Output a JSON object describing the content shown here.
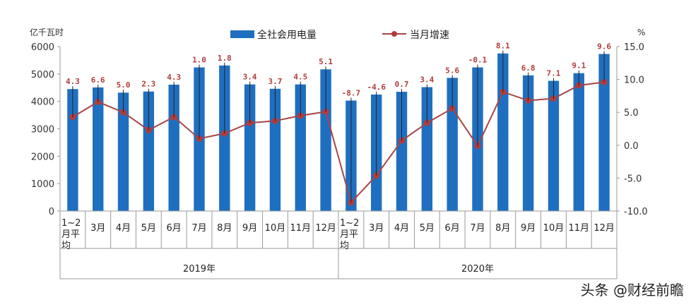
{
  "chart_data": {
    "type": "bar",
    "categories": [
      "1~2月平均",
      "3月",
      "4月",
      "5月",
      "6月",
      "7月",
      "8月",
      "9月",
      "10月",
      "11月",
      "12月",
      "1~2月平均",
      "3月",
      "4月",
      "5月",
      "6月",
      "7月",
      "8月",
      "9月",
      "10月",
      "11月",
      "12月"
    ],
    "category_lines": [
      [
        "1~2",
        "月平",
        "均"
      ],
      [
        "3月"
      ],
      [
        "4月"
      ],
      [
        "5月"
      ],
      [
        "6月"
      ],
      [
        "7月"
      ],
      [
        "8月"
      ],
      [
        "9月"
      ],
      [
        "10月"
      ],
      [
        "11月"
      ],
      [
        "12月"
      ],
      [
        "1~2",
        "月平",
        "均"
      ],
      [
        "3月"
      ],
      [
        "4月"
      ],
      [
        "5月"
      ],
      [
        "6月"
      ],
      [
        "7月"
      ],
      [
        "8月"
      ],
      [
        "9月"
      ],
      [
        "10月"
      ],
      [
        "11月"
      ],
      [
        "12月"
      ]
    ],
    "groups": [
      {
        "label": "2019年",
        "start": 0,
        "count": 11
      },
      {
        "label": "2020年",
        "start": 11,
        "count": 11
      }
    ],
    "series": [
      {
        "name": "全社会用电量",
        "type": "bar",
        "axis": "left",
        "values": [
          4450,
          4510,
          4320,
          4360,
          4610,
          5240,
          5310,
          4620,
          4460,
          4620,
          5170,
          4030,
          4250,
          4350,
          4520,
          4860,
          5240,
          5750,
          4950,
          4750,
          5030,
          5730
        ]
      },
      {
        "name": "当月增速",
        "type": "line",
        "axis": "right",
        "values": [
          4.3,
          6.6,
          5.0,
          2.3,
          4.3,
          1.0,
          1.8,
          3.4,
          3.7,
          4.5,
          5.1,
          -8.7,
          -4.6,
          0.7,
          3.4,
          5.6,
          -0.1,
          8.1,
          6.8,
          7.1,
          9.1,
          9.6
        ],
        "labels": [
          "4.3",
          "6.6",
          "5.0",
          "2.3",
          "4.3",
          "1.0",
          "1.8",
          "3.4",
          "3.7",
          "4.5",
          "5.1",
          "-8.7",
          "-4.6",
          "0.7",
          "3.4",
          "5.6",
          "-0.1",
          "8.1",
          "6.8",
          "7.1",
          "9.1",
          "9.6"
        ]
      }
    ],
    "y_left": {
      "label": "亿千瓦时",
      "range": [
        0,
        6000
      ],
      "ticks": [
        "0",
        "1000",
        "2000",
        "3000",
        "4000",
        "5000",
        "6000"
      ]
    },
    "y_right": {
      "label": "%",
      "range": [
        -10,
        15
      ],
      "ticks": [
        "-10.0",
        "-5.0",
        "0.0",
        "5.0",
        "10.0",
        "15.0"
      ]
    },
    "legend_position": "top",
    "colors": {
      "bar": "#1f6fc0",
      "line": "#a84444",
      "marker": "#b03c3c",
      "axis": "#999999"
    }
  },
  "watermark": "头条 @财经前瞻"
}
